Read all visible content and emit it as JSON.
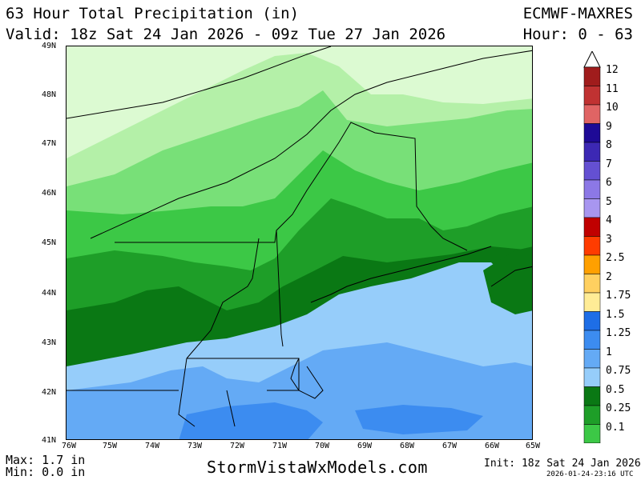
{
  "header": {
    "title": "63 Hour Total Precipitation (in)",
    "valid": "Valid: 18z Sat 24 Jan 2026 - 09z Tue 27 Jan 2026",
    "model": "ECMWF-MAXRES",
    "hours": "Hour: 0 - 63"
  },
  "map": {
    "lat_labels": [
      "49N",
      "48N",
      "47N",
      "46N",
      "45N",
      "44N",
      "43N",
      "42N",
      "41N"
    ],
    "lon_labels": [
      "76W",
      "75W",
      "74W",
      "73W",
      "72W",
      "71W",
      "70W",
      "69W",
      "68W",
      "67W",
      "66W",
      "65W"
    ],
    "region": "New England / Southern Quebec / Maritimes"
  },
  "legend": {
    "items": [
      {
        "label": "12",
        "color": "#a01c1c"
      },
      {
        "label": "11",
        "color": "#c03232"
      },
      {
        "label": "10",
        "color": "#e06464"
      },
      {
        "label": "9",
        "color": "#1e0a96"
      },
      {
        "label": "8",
        "color": "#3c28b4"
      },
      {
        "label": "7",
        "color": "#6450d2"
      },
      {
        "label": "6",
        "color": "#8c78e6"
      },
      {
        "label": "5",
        "color": "#a896f0"
      },
      {
        "label": "4",
        "color": "#c00000"
      },
      {
        "label": "3",
        "color": "#ff3c00"
      },
      {
        "label": "2.5",
        "color": "#ffa000"
      },
      {
        "label": "2",
        "color": "#ffd060"
      },
      {
        "label": "1.75",
        "color": "#ffec96"
      },
      {
        "label": "1.5",
        "color": "#1e6ee6"
      },
      {
        "label": "1.25",
        "color": "#3c8cf0"
      },
      {
        "label": "1",
        "color": "#64aaf5"
      },
      {
        "label": "0.75",
        "color": "#96cdfa"
      },
      {
        "label": "0.5",
        "color": "#0a7814"
      },
      {
        "label": "0.25",
        "color": "#1e9e28"
      },
      {
        "label": "0.1",
        "color": "#3cc846"
      }
    ],
    "extra_fills": [
      "#82e682",
      "#c8f5c0"
    ]
  },
  "footer": {
    "max": "Max: 1.7 in",
    "min": "Min: 0.0 in",
    "brand": "StormVistaWxModels.com",
    "init": "Init: 18z Sat 24 Jan 2026",
    "stamp": "2026-01-24-23:16 UTC"
  }
}
